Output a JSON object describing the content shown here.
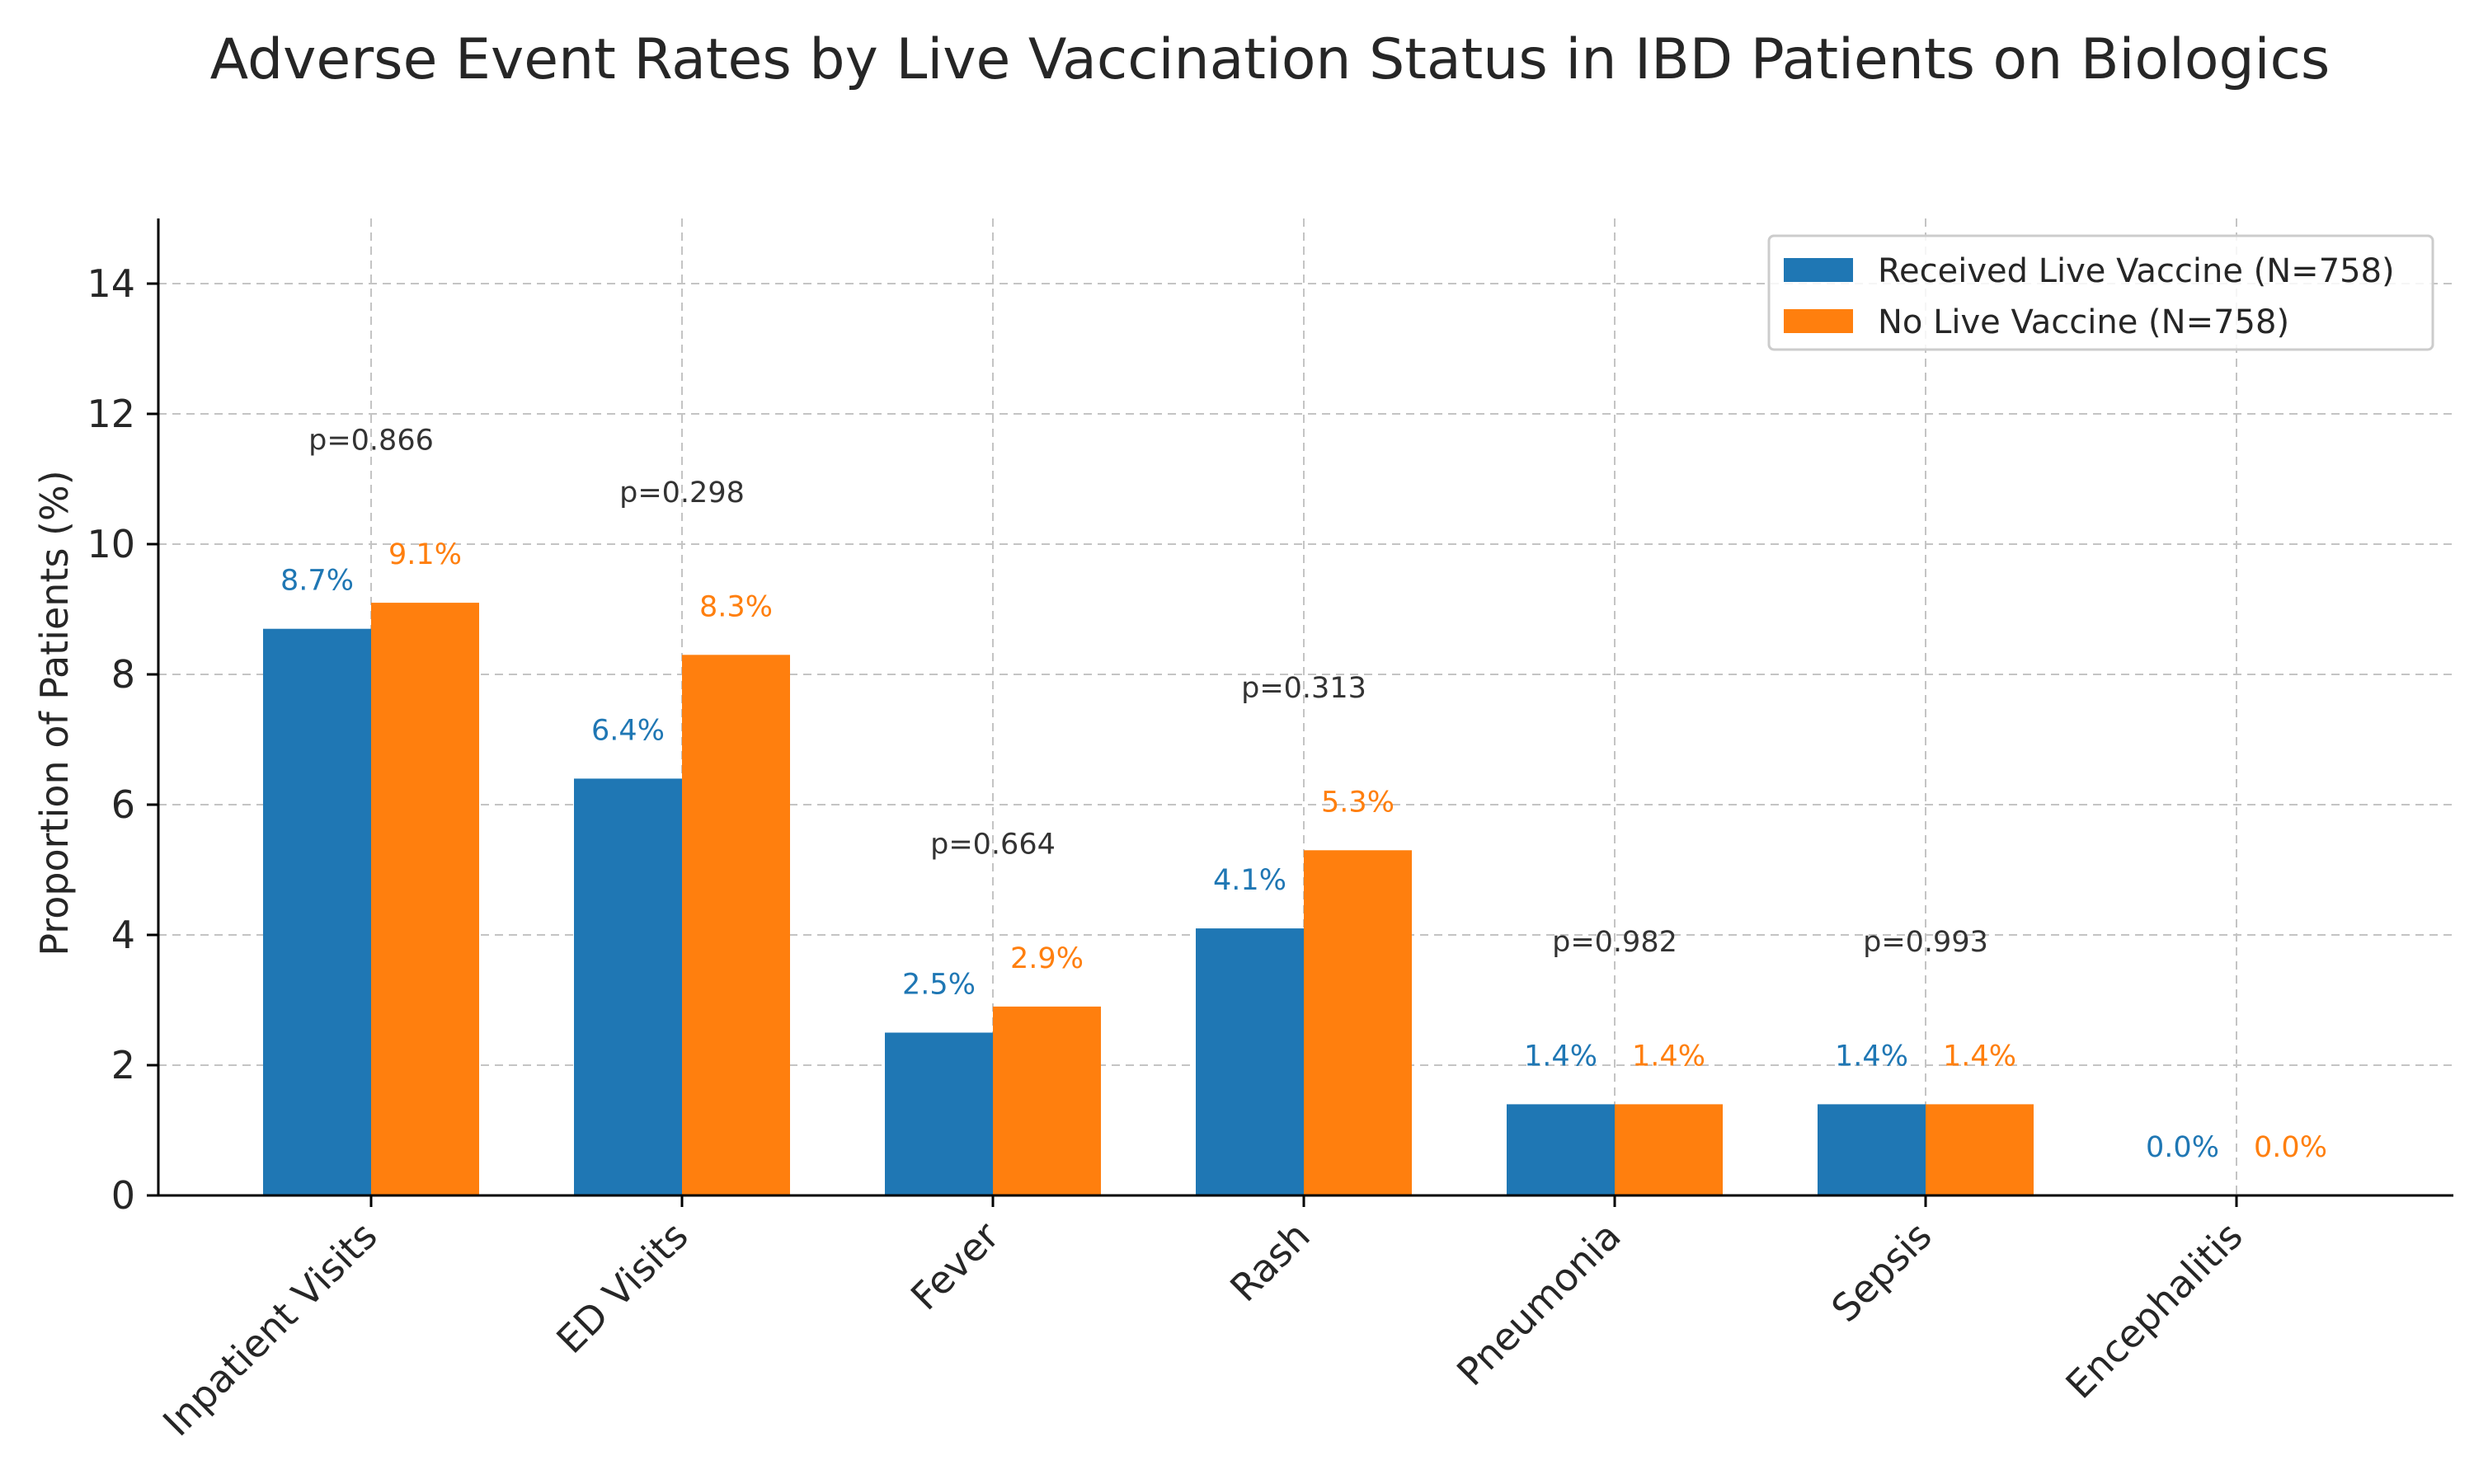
{
  "chart_data": {
    "type": "bar",
    "title": "Adverse Event Rates by Live Vaccination Status in IBD Patients on Biologics",
    "xlabel": "",
    "ylabel": "Proportion of Patients (%)",
    "ylim": [
      0,
      15
    ],
    "yticks": [
      0,
      2,
      4,
      6,
      8,
      10,
      12,
      14
    ],
    "grid": true,
    "legend_position": "top-right",
    "categories": [
      "Inpatient Visits",
      "ED Visits",
      "Fever",
      "Rash",
      "Pneumonia",
      "Sepsis",
      "Encephalitis"
    ],
    "series": [
      {
        "name": "Received Live Vaccine (N=758)",
        "color": "#1f77b4",
        "values": [
          8.7,
          6.4,
          2.5,
          4.1,
          1.4,
          1.4,
          0.0
        ],
        "labels": [
          "8.7%",
          "6.4%",
          "2.5%",
          "4.1%",
          "1.4%",
          "1.4%",
          "0.0%"
        ]
      },
      {
        "name": "No Live Vaccine (N=758)",
        "color": "#ff7f0e",
        "values": [
          9.1,
          8.3,
          2.9,
          5.3,
          1.4,
          1.4,
          0.0
        ],
        "labels": [
          "9.1%",
          "8.3%",
          "2.9%",
          "5.3%",
          "1.4%",
          "1.4%",
          "0.0%"
        ]
      }
    ],
    "annotations": [
      {
        "category": "Inpatient Visits",
        "text": "p=0.866",
        "y": 11.6
      },
      {
        "category": "ED Visits",
        "text": "p=0.298",
        "y": 10.8
      },
      {
        "category": "Fever",
        "text": "p=0.664",
        "y": 5.4
      },
      {
        "category": "Rash",
        "text": "p=0.313",
        "y": 7.8
      },
      {
        "category": "Pneumonia",
        "text": "p=0.982",
        "y": 3.9
      },
      {
        "category": "Sepsis",
        "text": "p=0.993",
        "y": 3.9
      }
    ]
  }
}
